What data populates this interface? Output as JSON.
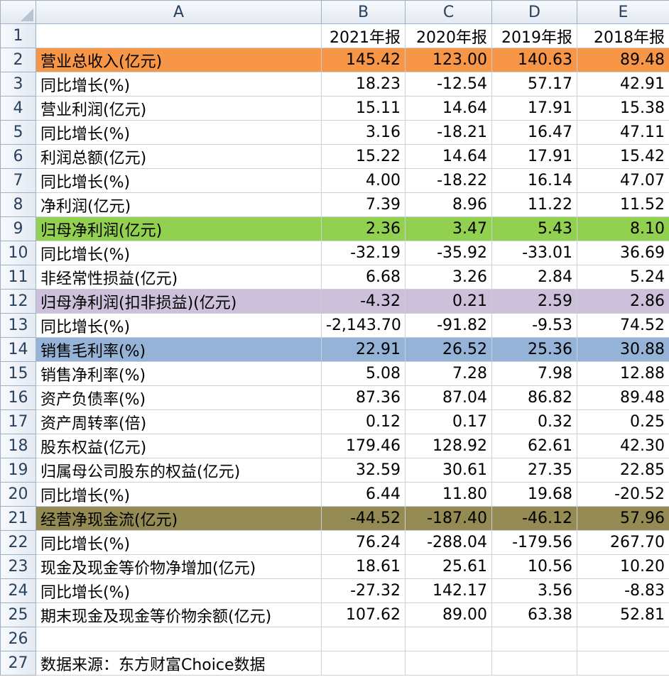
{
  "columns": [
    "A",
    "B",
    "C",
    "D",
    "E"
  ],
  "header_row": {
    "num": "1",
    "a": "",
    "b": "2021年报",
    "c": "2020年报",
    "d": "2019年报",
    "e": "2018年报"
  },
  "rows": [
    {
      "num": "2",
      "label": "营业总收入(亿元)",
      "b": "145.42",
      "c": "123.00",
      "d": "140.63",
      "e": "89.48"
    },
    {
      "num": "3",
      "label": "同比增长(%)",
      "b": "18.23",
      "c": "-12.54",
      "d": "57.17",
      "e": "42.91"
    },
    {
      "num": "4",
      "label": "营业利润(亿元)",
      "b": "15.11",
      "c": "14.64",
      "d": "17.91",
      "e": "15.38"
    },
    {
      "num": "5",
      "label": "同比增长(%)",
      "b": "3.16",
      "c": "-18.21",
      "d": "16.47",
      "e": "47.11"
    },
    {
      "num": "6",
      "label": "利润总额(亿元)",
      "b": "15.22",
      "c": "14.64",
      "d": "17.91",
      "e": "15.42"
    },
    {
      "num": "7",
      "label": "同比增长(%)",
      "b": "4.00",
      "c": "-18.22",
      "d": "16.14",
      "e": "47.07"
    },
    {
      "num": "8",
      "label": "净利润(亿元)",
      "b": "7.39",
      "c": "8.96",
      "d": "11.22",
      "e": "11.52"
    },
    {
      "num": "9",
      "label": "归母净利润(亿元)",
      "b": "2.36",
      "c": "3.47",
      "d": "5.43",
      "e": "8.10"
    },
    {
      "num": "10",
      "label": "同比增长(%)",
      "b": "-32.19",
      "c": "-35.92",
      "d": "-33.01",
      "e": "36.69"
    },
    {
      "num": "11",
      "label": "非经常性损益(亿元)",
      "b": "6.68",
      "c": "3.26",
      "d": "2.84",
      "e": "5.24"
    },
    {
      "num": "12",
      "label": "归母净利润(扣非损益)(亿元)",
      "b": "-4.32",
      "c": "0.21",
      "d": "2.59",
      "e": "2.86"
    },
    {
      "num": "13",
      "label": "同比增长(%)",
      "b": "-2,143.70",
      "c": "-91.82",
      "d": "-9.53",
      "e": "74.52"
    },
    {
      "num": "14",
      "label": "销售毛利率(%)",
      "b": "22.91",
      "c": "26.52",
      "d": "25.36",
      "e": "30.88"
    },
    {
      "num": "15",
      "label": "销售净利率(%)",
      "b": "5.08",
      "c": "7.28",
      "d": "7.98",
      "e": "12.88"
    },
    {
      "num": "16",
      "label": "资产负债率(%)",
      "b": "87.36",
      "c": "87.04",
      "d": "86.82",
      "e": "89.48"
    },
    {
      "num": "17",
      "label": "资产周转率(倍)",
      "b": "0.12",
      "c": "0.17",
      "d": "0.32",
      "e": "0.25"
    },
    {
      "num": "18",
      "label": "股东权益(亿元)",
      "b": "179.46",
      "c": "128.92",
      "d": "62.61",
      "e": "42.30"
    },
    {
      "num": "19",
      "label": "归属母公司股东的权益(亿元)",
      "b": "32.59",
      "c": "30.61",
      "d": "27.35",
      "e": "22.85"
    },
    {
      "num": "20",
      "label": "同比增长(%)",
      "b": "6.44",
      "c": "11.80",
      "d": "19.68",
      "e": "-20.52"
    },
    {
      "num": "21",
      "label": "经营净现金流(亿元)",
      "b": "-44.52",
      "c": "-187.40",
      "d": "-46.12",
      "e": "57.96"
    },
    {
      "num": "22",
      "label": "同比增长(%)",
      "b": "76.24",
      "c": "-288.04",
      "d": "-179.56",
      "e": "267.70"
    },
    {
      "num": "23",
      "label": "现金及现金等价物净增加(亿元)",
      "b": "18.61",
      "c": "25.61",
      "d": "10.56",
      "e": "10.20"
    },
    {
      "num": "24",
      "label": "同比增长(%)",
      "b": "-27.32",
      "c": "142.17",
      "d": "3.56",
      "e": "-8.83"
    },
    {
      "num": "25",
      "label": "期末现金及现金等价物余额(亿元)",
      "b": "107.62",
      "c": "89.00",
      "d": "63.38",
      "e": "52.81"
    },
    {
      "num": "26",
      "label": "",
      "b": "",
      "c": "",
      "d": "",
      "e": ""
    },
    {
      "num": "27",
      "label": "数据来源：东方财富Choice数据",
      "b": "",
      "c": "",
      "d": "",
      "e": ""
    }
  ],
  "highlight_colors": {
    "row_2": "#f79646",
    "row_9": "#92d050",
    "row_12": "#ccc0da",
    "row_14": "#95b3d7",
    "row_21": "#948a54"
  }
}
